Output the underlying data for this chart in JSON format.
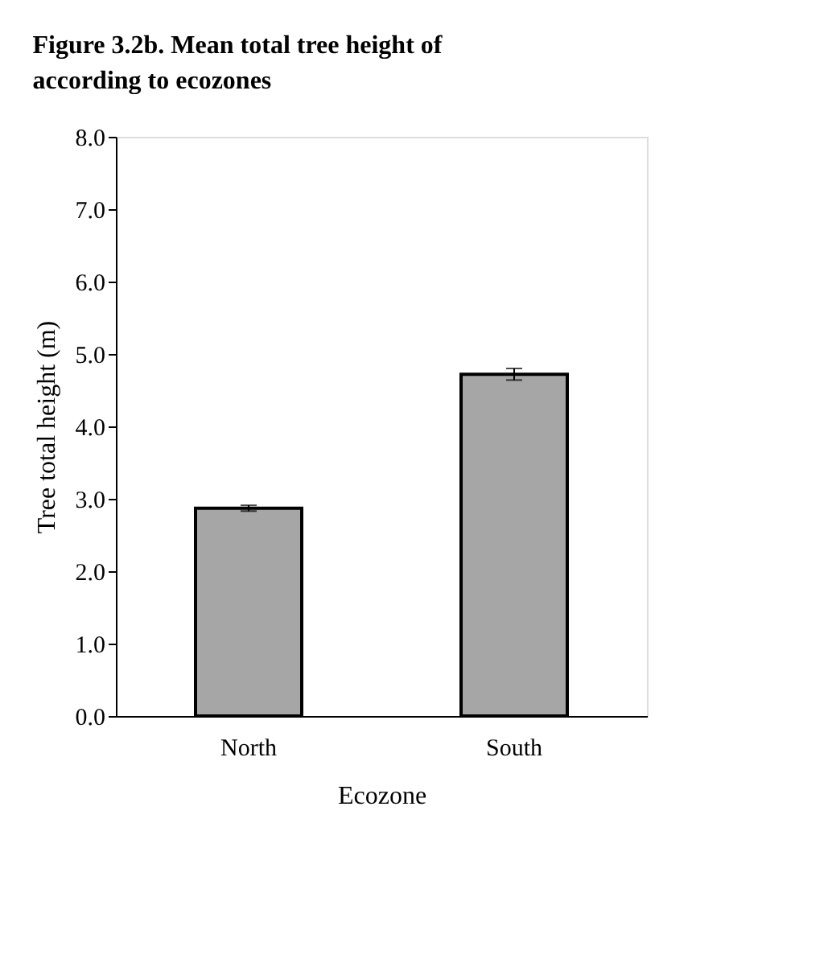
{
  "chart_data": {
    "type": "bar",
    "title": "Figure 3.2b. Mean total tree height of according to ecozones",
    "xlabel": "Ecozone",
    "ylabel": "Tree total height (m)",
    "categories": [
      "North",
      "South"
    ],
    "values": [
      2.87,
      4.72
    ],
    "errors": [
      0.04,
      0.08
    ],
    "color": "#a6a6a6",
    "ylim": [
      0,
      8
    ],
    "yticks": [
      {
        "value": 0,
        "label": "0.0"
      },
      {
        "value": 1,
        "label": "1.0"
      },
      {
        "value": 2,
        "label": "2.0"
      },
      {
        "value": 3,
        "label": "3.0"
      },
      {
        "value": 4,
        "label": "4.0"
      },
      {
        "value": 5,
        "label": "5.0"
      },
      {
        "value": 6,
        "label": "6.0"
      },
      {
        "value": 7,
        "label": "7.0"
      },
      {
        "value": 8,
        "label": "8.0"
      }
    ],
    "grid": false
  }
}
